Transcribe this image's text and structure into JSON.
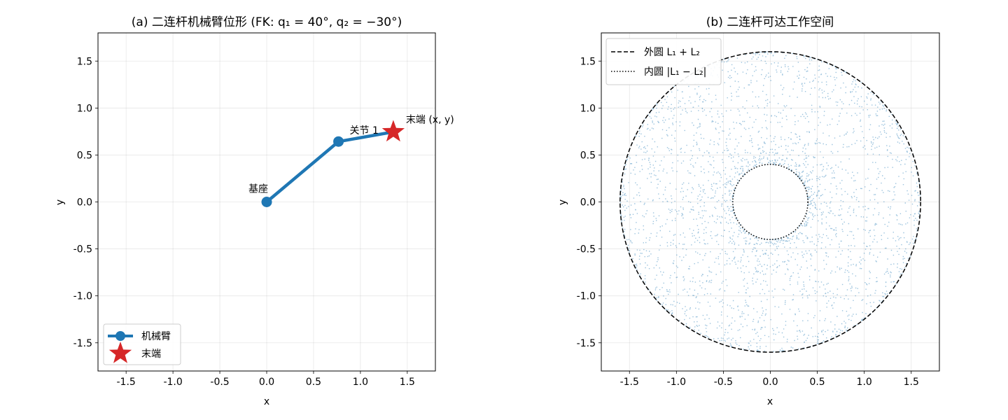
{
  "chart_data": [
    {
      "type": "line",
      "title": "(a) 二连杆机械臂位形 (FK: q₁ = 40°, q₂ = −30°)",
      "xlabel": "x",
      "ylabel": "y",
      "xlim": [
        -1.8,
        1.8
      ],
      "ylim": [
        -1.8,
        1.8
      ],
      "xticks": [
        -1.5,
        -1.0,
        -0.5,
        0.0,
        0.5,
        1.0,
        1.5
      ],
      "yticks": [
        -1.5,
        -1.0,
        -0.5,
        0.0,
        0.5,
        1.0,
        1.5
      ],
      "xtick_labels": [
        "-1.5",
        "-1.0",
        "-0.5",
        "0.0",
        "0.5",
        "1.0",
        "1.5"
      ],
      "ytick_labels": [
        "-1.5",
        "-1.0",
        "-0.5",
        "0.0",
        "0.5",
        "1.0",
        "1.5"
      ],
      "grid": true,
      "legend_position": "lower-left",
      "series": [
        {
          "name": "机械臂",
          "color": "#1f77b4",
          "marker": "circle",
          "x": [
            0.0,
            0.766,
            1.351
          ],
          "y": [
            0.0,
            0.643,
            0.746
          ]
        },
        {
          "name": "末端",
          "color": "#d62728",
          "marker": "star",
          "x": [
            1.351
          ],
          "y": [
            0.746
          ]
        }
      ],
      "annotations": [
        {
          "text": "基座",
          "x": 0.0,
          "y": 0.0
        },
        {
          "text": "关节 1",
          "x": 0.766,
          "y": 0.643
        },
        {
          "text": "末端 (x, y)",
          "x": 1.351,
          "y": 0.746
        }
      ]
    },
    {
      "type": "scatter",
      "title": "(b) 二连杆可达工作空间",
      "xlabel": "x",
      "ylabel": "y",
      "xlim": [
        -1.8,
        1.8
      ],
      "ylim": [
        -1.8,
        1.8
      ],
      "xticks": [
        -1.5,
        -1.0,
        -0.5,
        0.0,
        0.5,
        1.0,
        1.5
      ],
      "yticks": [
        -1.5,
        -1.0,
        -0.5,
        0.0,
        0.5,
        1.0,
        1.5
      ],
      "xtick_labels": [
        "-1.5",
        "-1.0",
        "-0.5",
        "0.0",
        "0.5",
        "1.0",
        "1.5"
      ],
      "ytick_labels": [
        "-1.5",
        "-1.0",
        "-0.5",
        "0.0",
        "0.5",
        "1.0",
        "1.5"
      ],
      "grid": true,
      "legend_position": "upper-left",
      "scatter": {
        "color": "#1f77b4",
        "count": 3000,
        "r_inner": 0.4,
        "r_outer": 1.6,
        "distribution": "random joint angles, reachable annulus"
      },
      "series": [
        {
          "name": "外圆 L₁ + L₂",
          "radius": 1.6,
          "linestyle": "dashed",
          "color": "#000000"
        },
        {
          "name": "内圆 |L₁ − L₂|",
          "radius": 0.4,
          "linestyle": "dotted",
          "color": "#000000"
        }
      ]
    }
  ]
}
